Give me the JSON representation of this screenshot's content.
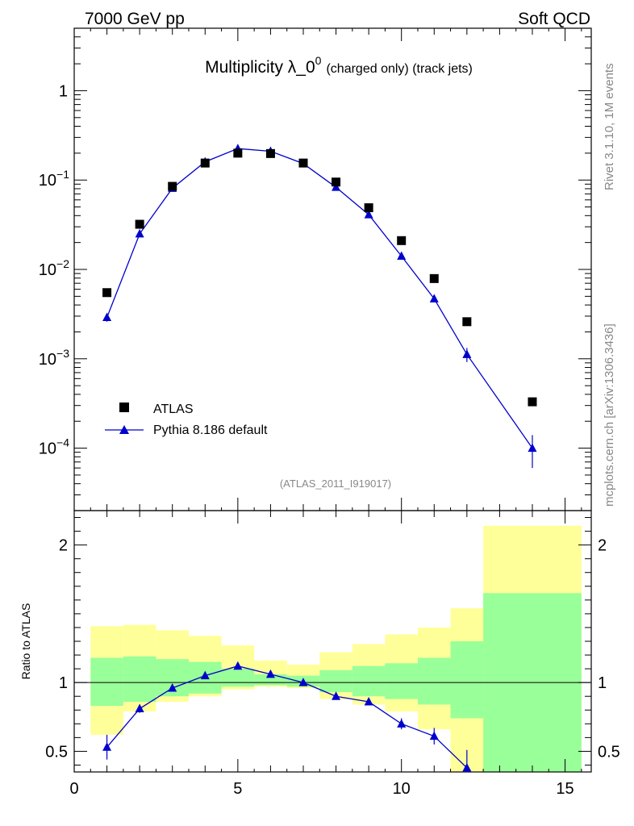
{
  "header": {
    "left": "7000 GeV pp",
    "right": "Soft QCD"
  },
  "title": {
    "main": "Multiplicity λ_0",
    "sup": "0",
    "small": "(charged only) (track jets)"
  },
  "side_labels": {
    "rivet": "Rivet 3.1.10,  1M events",
    "mcplots": "mcplots.cern.ch [arXiv:1306.3436]"
  },
  "analysis_id": "(ATLAS_2011_I919017)",
  "colors": {
    "atlas": "#000000",
    "pythia": "#0000cc",
    "band_inner": "#99ff99",
    "band_outer": "#ffff99",
    "label_gray": "#888888"
  },
  "chart_data": [
    {
      "type": "scatter",
      "panel": "main",
      "yscale": "log",
      "ylim": [
        2e-05,
        5
      ],
      "xlim": [
        0,
        15.8
      ],
      "ytick_labels": {
        "major": [
          "1",
          "10",
          "10",
          "10",
          "10"
        ],
        "exponents": [
          "",
          "−1",
          "−2",
          "−3",
          "−4"
        ]
      },
      "legend": {
        "placement": "bottom-left",
        "entries": [
          "ATLAS",
          "Pythia 8.186 default"
        ]
      },
      "series": [
        {
          "name": "ATLAS",
          "marker": "square",
          "x": [
            1,
            2,
            3,
            4,
            5,
            6,
            7,
            8,
            9,
            10,
            11,
            12,
            14
          ],
          "y": [
            0.0055,
            0.032,
            0.085,
            0.155,
            0.2,
            0.198,
            0.155,
            0.095,
            0.049,
            0.021,
            0.0079,
            0.0026,
            0.00033
          ]
        },
        {
          "name": "Pythia 8.186 default",
          "marker": "triangle",
          "x": [
            1,
            2,
            3,
            4,
            5,
            6,
            7,
            8,
            9,
            10,
            11,
            12,
            14
          ],
          "y": [
            0.0029,
            0.025,
            0.081,
            0.16,
            0.225,
            0.21,
            0.153,
            0.083,
            0.041,
            0.0141,
            0.0047,
            0.00112,
            0.0001
          ],
          "yerr": [
            0.0003,
            0.0015,
            0.003,
            0.005,
            0.006,
            0.006,
            0.005,
            0.003,
            0.0015,
            0.0006,
            0.0003,
            0.0002,
            4e-05
          ]
        }
      ]
    },
    {
      "type": "scatter",
      "panel": "ratio",
      "ylabel": "Ratio to ATLAS",
      "ylim": [
        0.35,
        2.25
      ],
      "xlim": [
        0,
        15.8
      ],
      "yticks": [
        0.5,
        1,
        2
      ],
      "ytick_labels": [
        "0.5",
        "1",
        "2"
      ],
      "xticks": [
        0,
        5,
        10,
        15
      ],
      "xtick_labels": [
        "0",
        "5",
        "10",
        "15"
      ],
      "bands": {
        "bins": [
          [
            0.5,
            1.5
          ],
          [
            1.5,
            2.5
          ],
          [
            2.5,
            3.5
          ],
          [
            3.5,
            4.5
          ],
          [
            4.5,
            5.5
          ],
          [
            5.5,
            6.5
          ],
          [
            6.5,
            7.5
          ],
          [
            7.5,
            8.5
          ],
          [
            8.5,
            9.5
          ],
          [
            9.5,
            10.5
          ],
          [
            10.5,
            11.5
          ],
          [
            11.5,
            12.5
          ],
          [
            12.5,
            15.5
          ]
        ],
        "inner": [
          [
            0.83,
            1.18
          ],
          [
            0.86,
            1.19
          ],
          [
            0.9,
            1.17
          ],
          [
            0.92,
            1.15
          ],
          [
            0.97,
            1.1
          ],
          [
            0.98,
            1.06
          ],
          [
            0.97,
            1.05
          ],
          [
            0.93,
            1.09
          ],
          [
            0.9,
            1.12
          ],
          [
            0.88,
            1.14
          ],
          [
            0.84,
            1.18
          ],
          [
            0.74,
            1.3
          ],
          [
            0.3,
            1.65
          ]
        ],
        "outer": [
          [
            0.62,
            1.41
          ],
          [
            0.79,
            1.42
          ],
          [
            0.86,
            1.38
          ],
          [
            0.9,
            1.34
          ],
          [
            0.95,
            1.27
          ],
          [
            0.97,
            1.16
          ],
          [
            0.96,
            1.13
          ],
          [
            0.88,
            1.22
          ],
          [
            0.84,
            1.28
          ],
          [
            0.79,
            1.35
          ],
          [
            0.66,
            1.4
          ],
          [
            0.3,
            1.54
          ],
          [
            0.3,
            2.14
          ]
        ]
      },
      "series": [
        {
          "name": "Pythia 8.186 default",
          "x": [
            1,
            2,
            3,
            4,
            5,
            6,
            7,
            8,
            9,
            10,
            11,
            12
          ],
          "y": [
            0.53,
            0.81,
            0.96,
            1.05,
            1.12,
            1.06,
            1.0,
            0.9,
            0.86,
            0.7,
            0.61,
            0.38
          ],
          "yerr": [
            0.09,
            0.03,
            0.02,
            0.02,
            0.02,
            0.02,
            0.02,
            0.02,
            0.02,
            0.04,
            0.06,
            0.13
          ]
        }
      ]
    }
  ]
}
